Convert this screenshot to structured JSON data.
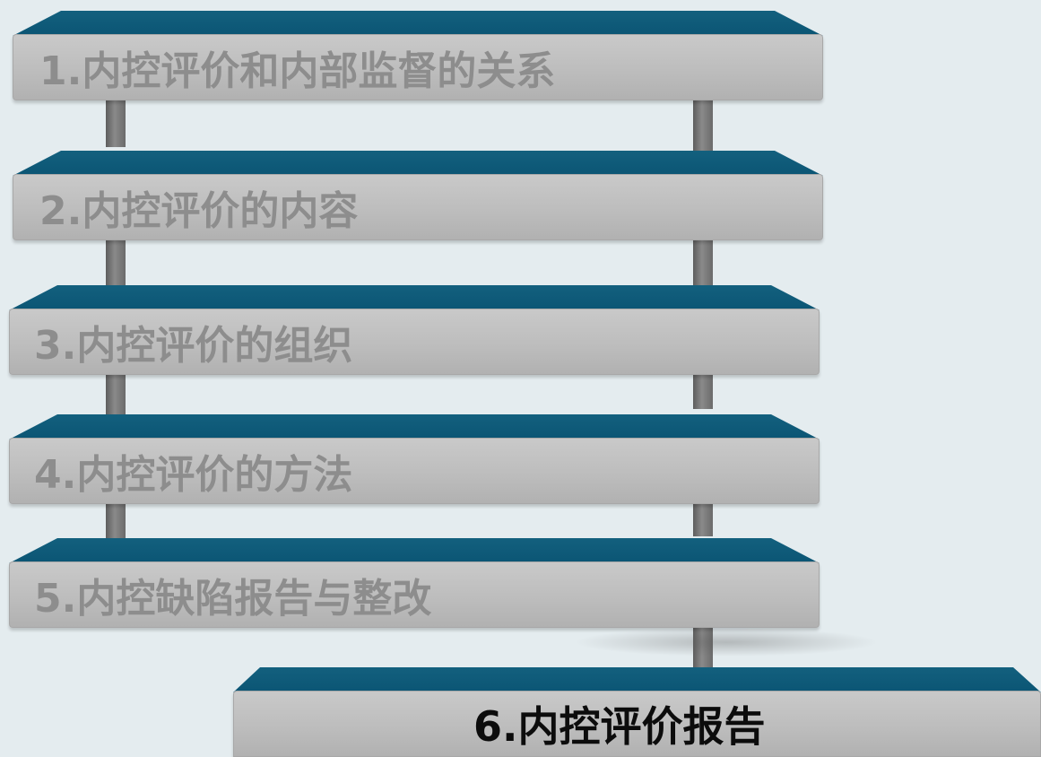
{
  "steps": [
    {
      "label": "1.内控评价和内部监督的关系"
    },
    {
      "label": "2.内控评价的内容"
    },
    {
      "label": "3.内控评价的组织"
    },
    {
      "label": "4.内控评价的方法"
    },
    {
      "label": "5.内控缺陷报告与整改"
    },
    {
      "label": "6.内控评价报告"
    }
  ],
  "colors": {
    "top_face": "#0b5574",
    "front_face": "#bdbdbd",
    "inactive_text": "#8d8d8d",
    "active_text": "#0c0c0c"
  },
  "active_step": 6
}
